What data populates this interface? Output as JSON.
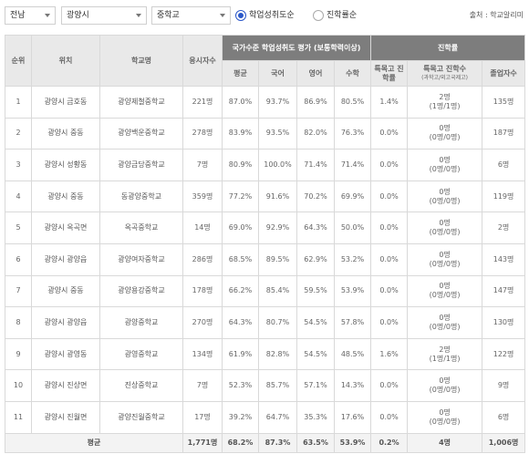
{
  "filters": {
    "region": "전남",
    "city": "광양시",
    "level": "중학교",
    "radio_rate": "학업성취도순",
    "radio_count": "진학률순",
    "source": "출처 : 학교알리미"
  },
  "table": {
    "headers": {
      "rank": "순위",
      "location": "위치",
      "school": "학교명",
      "applicants": "응시자수",
      "group_score": "국가수준 학업성취도 평가 (보통학력이상)",
      "avg": "평균",
      "korean": "국어",
      "english": "영어",
      "math": "수학",
      "group_adv": "진학률",
      "special_rate": "특목고 진학률",
      "special_count": "특목고 진학수",
      "special_count_sub": "(과학고/외고국제고)",
      "graduates": "졸업자수"
    },
    "rows": [
      {
        "rank": "1",
        "location": "광양시 금호동",
        "school": "광양제철중학교",
        "applicants": "221명",
        "avg": "87.0%",
        "korean": "93.7%",
        "english": "86.9%",
        "math": "80.5%",
        "special_rate": "1.4%",
        "special_count": "2명",
        "special_detail": "(1명/1명)",
        "graduates": "135명"
      },
      {
        "rank": "2",
        "location": "광양시 중동",
        "school": "광양백운중학교",
        "applicants": "278명",
        "avg": "83.9%",
        "korean": "93.5%",
        "english": "82.0%",
        "math": "76.3%",
        "special_rate": "0.0%",
        "special_count": "0명",
        "special_detail": "(0명/0명)",
        "graduates": "187명"
      },
      {
        "rank": "3",
        "location": "광양시 성황동",
        "school": "광양금당중학교",
        "applicants": "7명",
        "avg": "80.9%",
        "korean": "100.0%",
        "english": "71.4%",
        "math": "71.4%",
        "special_rate": "0.0%",
        "special_count": "0명",
        "special_detail": "(0명/0명)",
        "graduates": "6명"
      },
      {
        "rank": "4",
        "location": "광양시 중동",
        "school": "동광양중학교",
        "applicants": "359명",
        "avg": "77.2%",
        "korean": "91.6%",
        "english": "70.2%",
        "math": "69.9%",
        "special_rate": "0.0%",
        "special_count": "0명",
        "special_detail": "(0명/0명)",
        "graduates": "119명"
      },
      {
        "rank": "5",
        "location": "광양시 옥곡면",
        "school": "옥곡중학교",
        "applicants": "14명",
        "avg": "69.0%",
        "korean": "92.9%",
        "english": "64.3%",
        "math": "50.0%",
        "special_rate": "0.0%",
        "special_count": "0명",
        "special_detail": "(0명/0명)",
        "graduates": "2명"
      },
      {
        "rank": "6",
        "location": "광양시 광양읍",
        "school": "광양여자중학교",
        "applicants": "286명",
        "avg": "68.5%",
        "korean": "89.5%",
        "english": "62.9%",
        "math": "53.2%",
        "special_rate": "0.0%",
        "special_count": "0명",
        "special_detail": "(0명/0명)",
        "graduates": "143명"
      },
      {
        "rank": "7",
        "location": "광양시 중동",
        "school": "광양용강중학교",
        "applicants": "178명",
        "avg": "66.2%",
        "korean": "85.4%",
        "english": "59.5%",
        "math": "53.9%",
        "special_rate": "0.0%",
        "special_count": "0명",
        "special_detail": "(0명/0명)",
        "graduates": "147명"
      },
      {
        "rank": "8",
        "location": "광양시 광양읍",
        "school": "광양중학교",
        "applicants": "270명",
        "avg": "64.3%",
        "korean": "80.7%",
        "english": "54.5%",
        "math": "57.8%",
        "special_rate": "0.0%",
        "special_count": "0명",
        "special_detail": "(0명/0명)",
        "graduates": "130명"
      },
      {
        "rank": "9",
        "location": "광양시 광영동",
        "school": "광영중학교",
        "applicants": "134명",
        "avg": "61.9%",
        "korean": "82.8%",
        "english": "54.5%",
        "math": "48.5%",
        "special_rate": "1.6%",
        "special_count": "2명",
        "special_detail": "(1명/1명)",
        "graduates": "122명"
      },
      {
        "rank": "10",
        "location": "광양시 진상면",
        "school": "진상중학교",
        "applicants": "7명",
        "avg": "52.3%",
        "korean": "85.7%",
        "english": "57.1%",
        "math": "14.3%",
        "special_rate": "0.0%",
        "special_count": "0명",
        "special_detail": "(0명/0명)",
        "graduates": "9명"
      },
      {
        "rank": "11",
        "location": "광양시 진월면",
        "school": "광양진월중학교",
        "applicants": "17명",
        "avg": "39.2%",
        "korean": "64.7%",
        "english": "35.3%",
        "math": "17.6%",
        "special_rate": "0.0%",
        "special_count": "0명",
        "special_detail": "(0명/0명)",
        "graduates": "6명"
      }
    ],
    "footer": {
      "label": "평균",
      "applicants": "1,771명",
      "avg": "68.2%",
      "korean": "87.3%",
      "english": "63.5%",
      "math": "53.9%",
      "special_rate": "0.2%",
      "special_count": "4명",
      "graduates": "1,006명"
    }
  }
}
